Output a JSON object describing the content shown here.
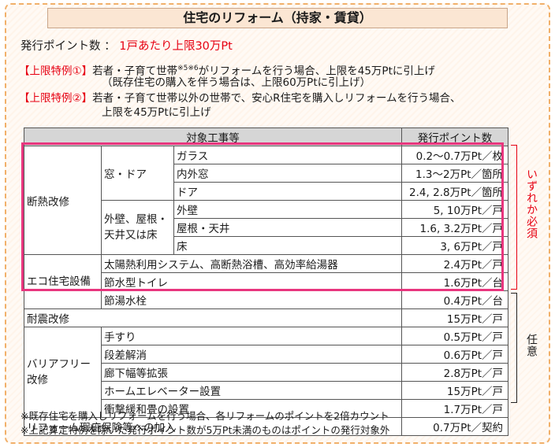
{
  "title": "住宅のリフォーム（持家・賃貸）",
  "points_issued": {
    "label": "発行ポイント数 ：",
    "value": "1戸あたり上限30万Pt"
  },
  "special_cases": [
    {
      "tag": "【上限特例①】",
      "text": "若者・子育て世帯",
      "sup": "※5※6",
      "text_after": "がリフォームを行う場合、上限を45万Ptに引上げ",
      "subtext": "（既存住宅の購入を伴う場合は、上限60万Ptに引上げ）"
    },
    {
      "tag": "【上限特例②】",
      "text": "若者・子育て世帯以外の世帯で、安心R住宅を購入しリフォームを行う場合、",
      "subtext": "上限を45万Ptに引上げ"
    }
  ],
  "table": {
    "headers": [
      "対象工事等",
      "発行ポイント数"
    ],
    "categories": {
      "insulation": "断熱改修",
      "window_door": "窓・ドア",
      "wall_roof": "外壁、屋根・天井又は床",
      "eco": "エコ住宅設備",
      "seismic": "耐震改修",
      "barrier_free": "バリアフリー改修",
      "warranty": "リフォーム瑕疵保険等への加入"
    },
    "rows": [
      {
        "item": "ガラス",
        "points": "0.2～0.7万Pt／枚"
      },
      {
        "item": "内外窓",
        "points": "1.3～2万Pt／箇所"
      },
      {
        "item": "ドア",
        "points": "2.4, 2.8万Pt／箇所"
      },
      {
        "item": "外壁",
        "points": "5, 10万Pt／戸"
      },
      {
        "item": "屋根・天井",
        "points": "1.6, 3.2万Pt／戸"
      },
      {
        "item": "床",
        "points": "3, 6万Pt／戸"
      },
      {
        "item": "太陽熱利用システム、高断熱浴槽、高効率給湯器",
        "points": "2.4万Pt／戸"
      },
      {
        "item": "節水型トイレ",
        "points": "1.6万Pt／台"
      },
      {
        "item": "節湯水栓",
        "points": "0.4万Pt／台"
      },
      {
        "item": "",
        "points": "15万Pt／戸"
      },
      {
        "item": "手すり",
        "points": "0.5万Pt／戸"
      },
      {
        "item": "段差解消",
        "points": "0.6万Pt／戸"
      },
      {
        "item": "廊下幅等拡張",
        "points": "2.8万Pt／戸"
      },
      {
        "item": "ホームエレベーター設置",
        "points": "15万Pt／戸"
      },
      {
        "item": "衝撃緩和畳の設置",
        "points": "1.7万Pt／戸"
      },
      {
        "item": "",
        "points": "0.7万Pt／契約"
      }
    ]
  },
  "side_labels": {
    "required": "いずれか必須",
    "optional": "任意"
  },
  "notes": [
    "※既存住宅を購入しリフォームを行う場合、各リフォームのポイントを2倍カウント",
    "※上記算定特例を除いた発行ポイント数が5万Pt未満のものはポイントの発行対象外"
  ],
  "colors": {
    "accent_red": "#e60012",
    "highlight_pink": "#e8367e",
    "frame_orange": "#f1b06a",
    "title_bg": "#fbe6d3",
    "header_gray": "#d6d6d6"
  }
}
